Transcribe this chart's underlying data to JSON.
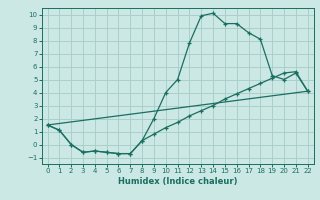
{
  "title": "",
  "xlabel": "Humidex (Indice chaleur)",
  "ylabel": "",
  "bg_color": "#cce8e4",
  "grid_color": "#aacfca",
  "line_color": "#1a6e62",
  "xlim": [
    -0.5,
    22.5
  ],
  "ylim": [
    -1.5,
    10.5
  ],
  "xticks": [
    0,
    1,
    2,
    3,
    4,
    5,
    6,
    7,
    8,
    9,
    10,
    11,
    12,
    13,
    14,
    15,
    16,
    17,
    18,
    19,
    20,
    21,
    22
  ],
  "yticks": [
    -1,
    0,
    1,
    2,
    3,
    4,
    5,
    6,
    7,
    8,
    9,
    10
  ],
  "line1_x": [
    0,
    1,
    2,
    3,
    4,
    5,
    6,
    7,
    8,
    9,
    10,
    11,
    12,
    13,
    14,
    15,
    16,
    17,
    18,
    19,
    20,
    21,
    22
  ],
  "line1_y": [
    1.5,
    1.1,
    0.0,
    -0.6,
    -0.5,
    -0.6,
    -0.7,
    -0.7,
    0.3,
    2.0,
    4.0,
    5.0,
    7.8,
    9.9,
    10.1,
    9.3,
    9.3,
    8.6,
    8.1,
    5.3,
    5.0,
    5.5,
    4.1
  ],
  "line2_x": [
    0,
    1,
    2,
    3,
    4,
    5,
    6,
    7,
    8,
    9,
    10,
    11,
    12,
    13,
    14,
    15,
    16,
    17,
    18,
    19,
    20,
    21,
    22
  ],
  "line2_y": [
    1.5,
    1.1,
    0.0,
    -0.6,
    -0.5,
    -0.6,
    -0.7,
    -0.7,
    0.3,
    0.8,
    1.3,
    1.7,
    2.2,
    2.6,
    3.0,
    3.5,
    3.9,
    4.3,
    4.7,
    5.1,
    5.5,
    5.6,
    4.1
  ],
  "line3_x": [
    0,
    22
  ],
  "line3_y": [
    1.5,
    4.1
  ]
}
